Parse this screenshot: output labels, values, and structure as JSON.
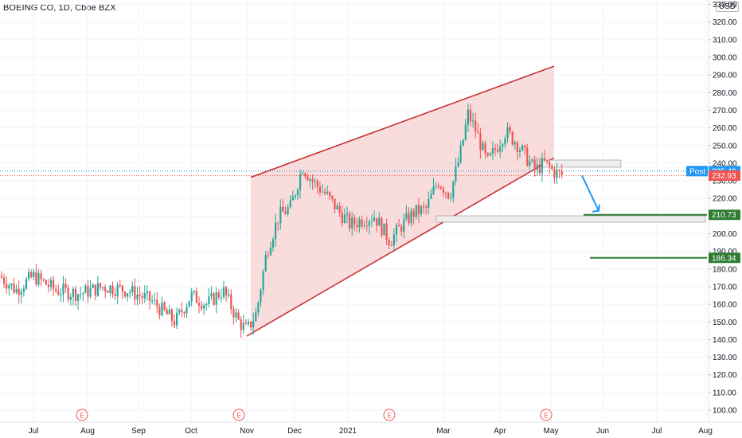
{
  "header": {
    "title": "BOEING CO, 1D, Cboe BZX",
    "currency": "USD"
  },
  "colors": {
    "up": "#26a69a",
    "down": "#ef5350",
    "wedge_line": "#c62828",
    "wedge_fill": "#f5c6c6",
    "arrow": "#2196f3",
    "target_line": "#2e7d32",
    "post_badge": "#2196f3",
    "last_badge": "#ef5350"
  },
  "axis": {
    "y_ticks": [
      "330.00",
      "320.00",
      "310.00",
      "300.00",
      "290.00",
      "280.00",
      "270.00",
      "260.00",
      "250.00",
      "240.00",
      "230.00",
      "220.00",
      "210.00",
      "200.00",
      "190.00",
      "180.00",
      "170.00",
      "160.00",
      "150.00",
      "140.00",
      "130.00",
      "120.00",
      "110.00",
      "100.00"
    ],
    "x_labels": [
      "Jul",
      "Aug",
      "Sep",
      "Oct",
      "Nov",
      "Dec",
      "2021",
      "Mar",
      "Apr",
      "May",
      "Jun",
      "Jul",
      "Aug"
    ],
    "earnings_marker": "E"
  },
  "price_labels": {
    "post_tag": "Post",
    "post_price": "235.48",
    "last_price": "232.93",
    "target_1": "210.73",
    "target_2": "186.34"
  },
  "chart_data": {
    "type": "candlestick",
    "title": "BOEING CO, 1D, Cboe BZX",
    "ylim": [
      95,
      335
    ],
    "series_close_approx": [
      {
        "month": "Jul",
        "value": 176
      },
      {
        "month": "Aug",
        "value": 168
      },
      {
        "month": "Sep",
        "value": 163
      },
      {
        "month": "Oct",
        "value": 160
      },
      {
        "month": "Nov",
        "value": 150
      },
      {
        "month": "Dec",
        "value": 218
      },
      {
        "month": "2021",
        "value": 208
      },
      {
        "month": "Mar",
        "value": 255
      },
      {
        "month": "Apr",
        "value": 248
      },
      {
        "month": "May",
        "value": 232.93
      }
    ],
    "rising_wedge": {
      "upper_start": 232,
      "upper_end": 295,
      "lower_start": 143,
      "lower_end": 243
    },
    "targets": [
      210.73,
      186.34
    ]
  }
}
